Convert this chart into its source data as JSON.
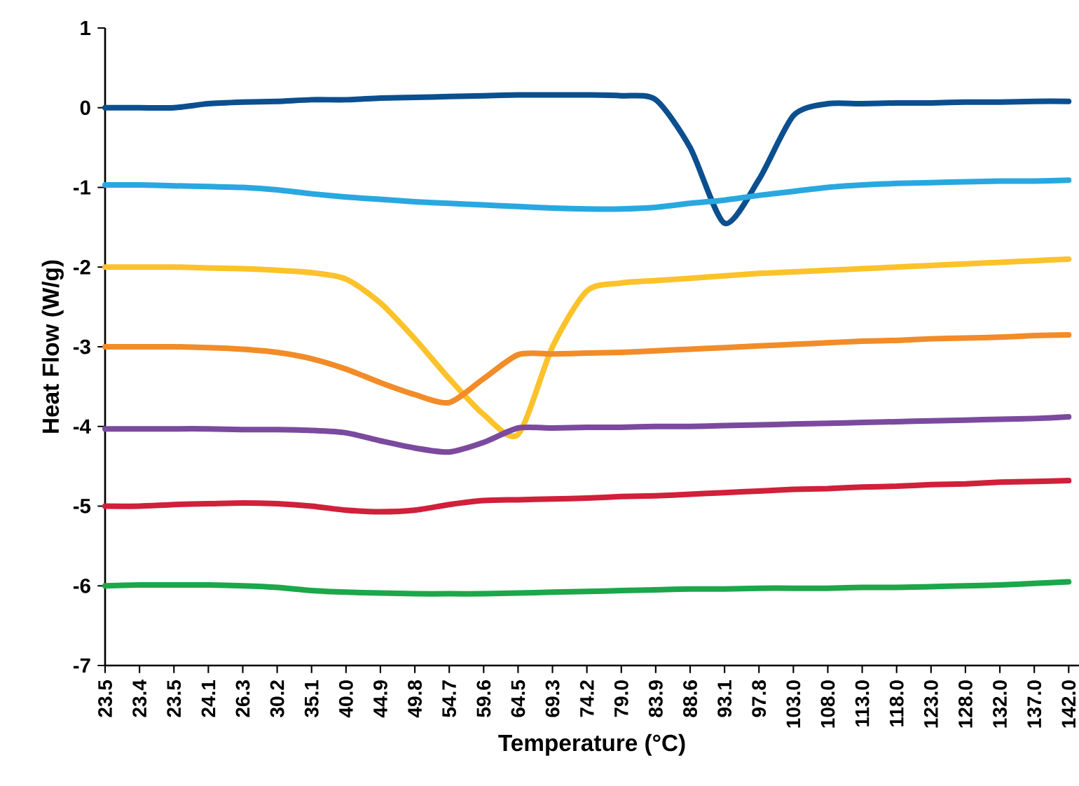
{
  "chart_data": {
    "type": "line",
    "xlabel": "Temperature (°C)",
    "ylabel": "Heat Flow (W/g)",
    "categories": [
      "23.5",
      "23.4",
      "23.5",
      "24.1",
      "26.3",
      "30.2",
      "35.1",
      "40.0",
      "44.9",
      "49.8",
      "54.7",
      "59.6",
      "64.5",
      "69.3",
      "74.2",
      "79.0",
      "83.9",
      "88.6",
      "93.1",
      "97.8",
      "103.0",
      "108.0",
      "113.0",
      "118.0",
      "123.0",
      "128.0",
      "132.0",
      "137.0",
      "142.0"
    ],
    "ylim": [
      -7,
      1
    ],
    "yticks": [
      -7,
      -6,
      -5,
      -4,
      -3,
      -2,
      -1,
      0,
      1
    ],
    "series": [
      {
        "color": "#0b4f8f",
        "values": [
          0,
          0,
          0,
          0.05,
          0.07,
          0.08,
          0.1,
          0.1,
          0.12,
          0.13,
          0.14,
          0.15,
          0.16,
          0.16,
          0.16,
          0.15,
          0.1,
          -0.5,
          -1.45,
          -0.9,
          -0.1,
          0.05,
          0.05,
          0.06,
          0.06,
          0.07,
          0.07,
          0.08,
          0.08
        ]
      },
      {
        "color": "#29a8e0",
        "values": [
          -0.97,
          -0.97,
          -0.98,
          -0.99,
          -1.0,
          -1.03,
          -1.08,
          -1.12,
          -1.15,
          -1.18,
          -1.2,
          -1.22,
          -1.24,
          -1.26,
          -1.27,
          -1.27,
          -1.25,
          -1.2,
          -1.16,
          -1.1,
          -1.05,
          -1.0,
          -0.97,
          -0.95,
          -0.94,
          -0.93,
          -0.92,
          -0.92,
          -0.91
        ]
      },
      {
        "color": "#fcc22a",
        "values": [
          -2.0,
          -2.0,
          -2.0,
          -2.01,
          -2.02,
          -2.04,
          -2.07,
          -2.15,
          -2.45,
          -2.9,
          -3.4,
          -3.85,
          -4.1,
          -3.0,
          -2.3,
          -2.2,
          -2.17,
          -2.14,
          -2.11,
          -2.08,
          -2.06,
          -2.04,
          -2.02,
          -2.0,
          -1.98,
          -1.96,
          -1.94,
          -1.92,
          -1.9
        ]
      },
      {
        "color": "#f28c28",
        "values": [
          -3.0,
          -3.0,
          -3.0,
          -3.01,
          -3.03,
          -3.07,
          -3.15,
          -3.28,
          -3.45,
          -3.6,
          -3.7,
          -3.4,
          -3.1,
          -3.09,
          -3.08,
          -3.07,
          -3.05,
          -3.03,
          -3.01,
          -2.99,
          -2.97,
          -2.95,
          -2.93,
          -2.92,
          -2.9,
          -2.89,
          -2.88,
          -2.86,
          -2.85
        ]
      },
      {
        "color": "#7b4a9e",
        "values": [
          -4.03,
          -4.03,
          -4.03,
          -4.03,
          -4.04,
          -4.04,
          -4.05,
          -4.08,
          -4.18,
          -4.27,
          -4.32,
          -4.2,
          -4.02,
          -4.02,
          -4.01,
          -4.01,
          -4.0,
          -4.0,
          -3.99,
          -3.98,
          -3.97,
          -3.96,
          -3.95,
          -3.94,
          -3.93,
          -3.92,
          -3.91,
          -3.9,
          -3.88
        ]
      },
      {
        "color": "#d0203a",
        "values": [
          -5.0,
          -5.0,
          -4.98,
          -4.97,
          -4.96,
          -4.97,
          -5.0,
          -5.05,
          -5.07,
          -5.05,
          -4.98,
          -4.93,
          -4.92,
          -4.91,
          -4.9,
          -4.88,
          -4.87,
          -4.85,
          -4.83,
          -4.81,
          -4.79,
          -4.78,
          -4.76,
          -4.75,
          -4.73,
          -4.72,
          -4.7,
          -4.69,
          -4.68
        ]
      },
      {
        "color": "#1ca74a",
        "values": [
          -6.0,
          -5.99,
          -5.99,
          -5.99,
          -6.0,
          -6.02,
          -6.06,
          -6.08,
          -6.09,
          -6.1,
          -6.1,
          -6.1,
          -6.09,
          -6.08,
          -6.07,
          -6.06,
          -6.05,
          -6.04,
          -6.04,
          -6.03,
          -6.03,
          -6.03,
          -6.02,
          -6.02,
          -6.01,
          -6.0,
          -5.99,
          -5.97,
          -5.95
        ]
      }
    ]
  }
}
